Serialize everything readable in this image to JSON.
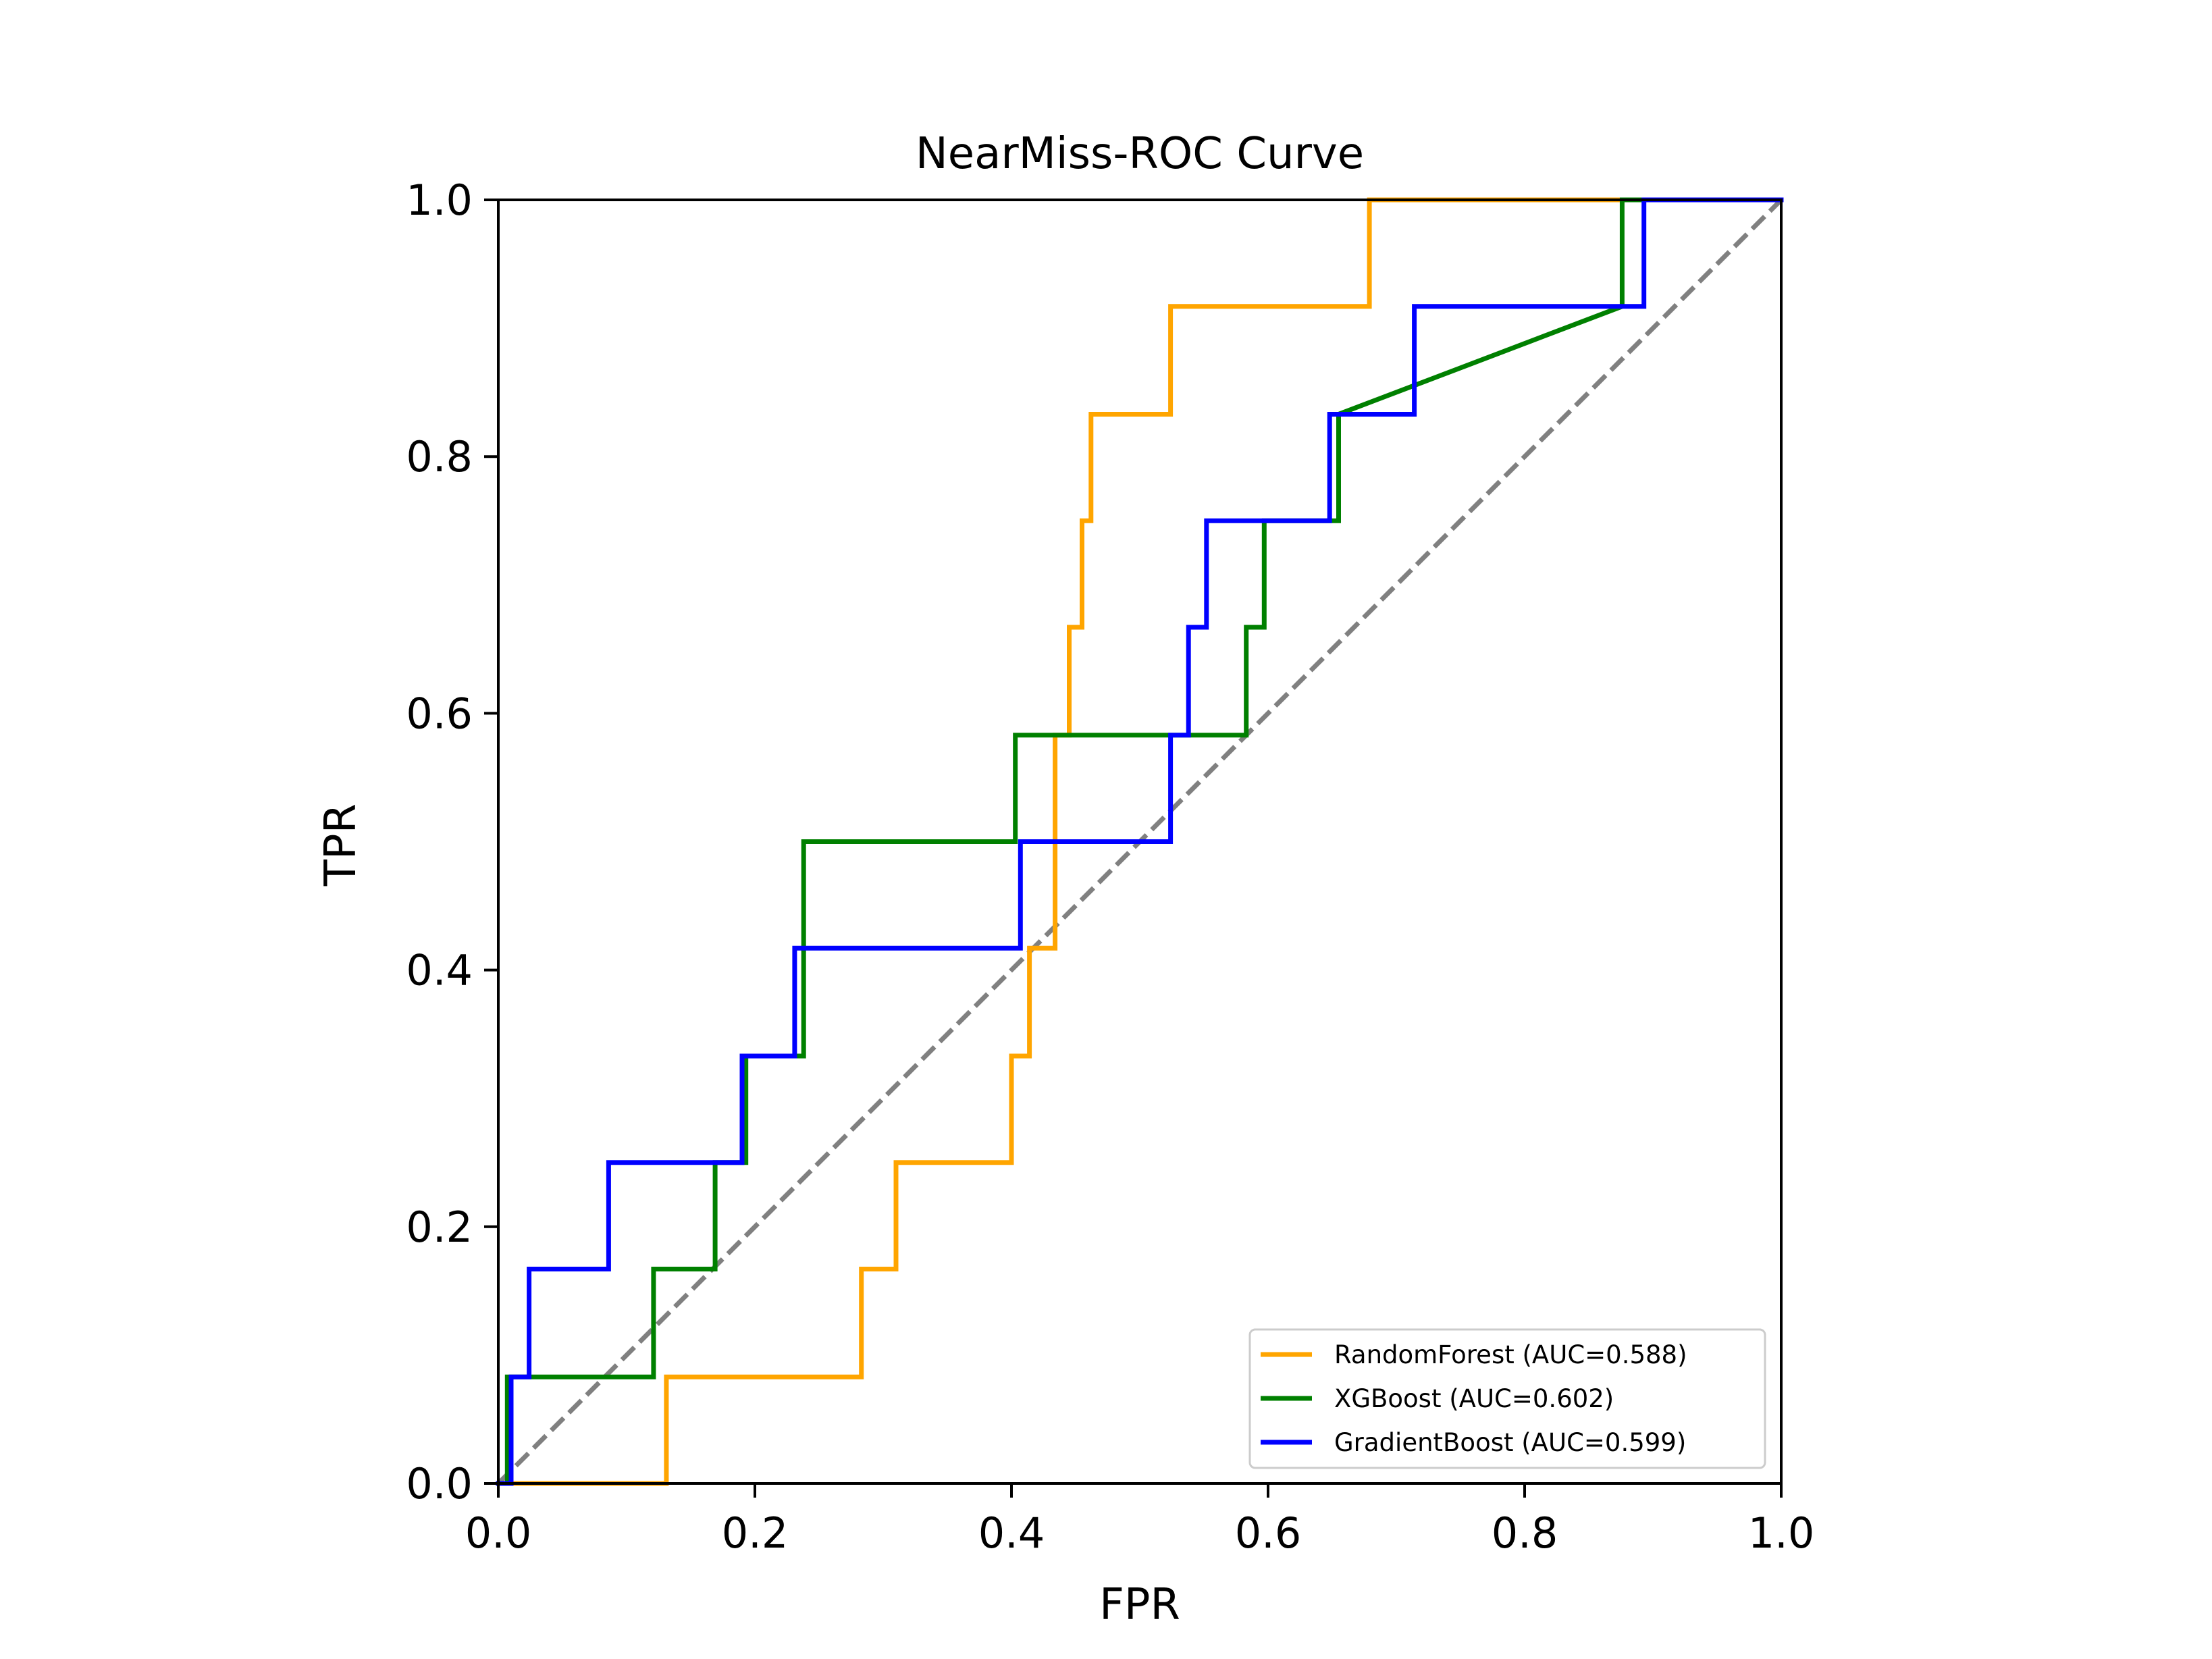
{
  "chart_data": {
    "type": "line",
    "title": "NearMiss-ROC Curve",
    "xlabel": "FPR",
    "ylabel": "TPR",
    "xlim": [
      0.0,
      1.0
    ],
    "ylim": [
      0.0,
      1.0
    ],
    "xticks": [
      "0.0",
      "0.2",
      "0.4",
      "0.6",
      "0.8",
      "1.0"
    ],
    "yticks": [
      "0.0",
      "0.2",
      "0.4",
      "0.6",
      "0.8",
      "1.0"
    ],
    "grid": false,
    "legend_position": "lower-right",
    "series": [
      {
        "name": "RandomForest (AUC=0.588)",
        "color": "#ffa500",
        "x": [
          0,
          0.131,
          0.131,
          0.283,
          0.283,
          0.31,
          0.31,
          0.4,
          0.4,
          0.414,
          0.414,
          0.434,
          0.434,
          0.445,
          0.445,
          0.455,
          0.455,
          0.462,
          0.462,
          0.524,
          0.524,
          0.679,
          0.679,
          1.0
        ],
        "y": [
          0,
          0,
          0.083,
          0.083,
          0.167,
          0.167,
          0.25,
          0.25,
          0.333,
          0.333,
          0.417,
          0.417,
          0.583,
          0.583,
          0.667,
          0.667,
          0.75,
          0.75,
          0.833,
          0.833,
          0.917,
          0.917,
          1.0,
          1.0
        ]
      },
      {
        "name": "XGBoost (AUC=0.602)",
        "color": "#008000",
        "x": [
          0,
          0.007,
          0.007,
          0.121,
          0.121,
          0.169,
          0.169,
          0.193,
          0.193,
          0.238,
          0.238,
          0.403,
          0.403,
          0.583,
          0.583,
          0.597,
          0.597,
          0.655,
          0.655,
          0.876,
          0.876,
          1.0
        ],
        "y": [
          0,
          0,
          0.083,
          0.083,
          0.167,
          0.167,
          0.25,
          0.25,
          0.333,
          0.333,
          0.5,
          0.5,
          0.583,
          0.583,
          0.667,
          0.667,
          0.75,
          0.75,
          0.833,
          0.917,
          1.0,
          1.0
        ]
      },
      {
        "name": "GradientBoost (AUC=0.599)",
        "color": "#0000ff",
        "x": [
          0,
          0.01,
          0.01,
          0.024,
          0.024,
          0.086,
          0.086,
          0.19,
          0.19,
          0.231,
          0.231,
          0.407,
          0.407,
          0.524,
          0.524,
          0.538,
          0.538,
          0.552,
          0.552,
          0.648,
          0.648,
          0.714,
          0.714,
          0.893,
          0.893,
          1.0
        ],
        "y": [
          0,
          0,
          0.083,
          0.083,
          0.167,
          0.167,
          0.25,
          0.25,
          0.333,
          0.333,
          0.417,
          0.417,
          0.5,
          0.5,
          0.583,
          0.583,
          0.667,
          0.667,
          0.75,
          0.75,
          0.833,
          0.833,
          0.917,
          0.917,
          1.0,
          1.0
        ]
      }
    ],
    "reference_line": {
      "style": "dashed",
      "color": "#808080",
      "x": [
        0,
        1
      ],
      "y": [
        0,
        1
      ]
    }
  }
}
